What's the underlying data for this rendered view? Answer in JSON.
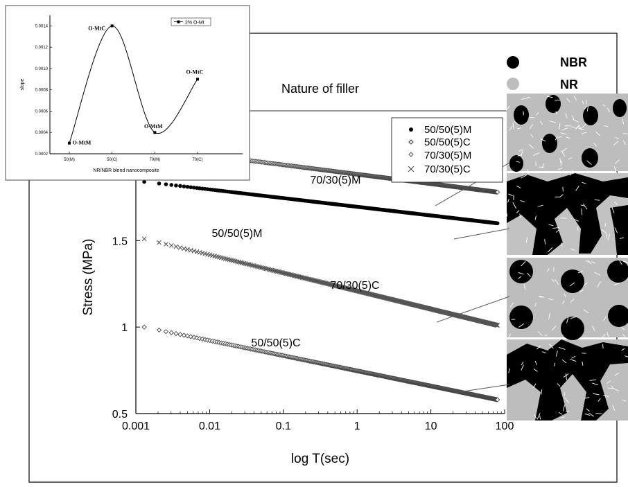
{
  "chart_data": [
    {
      "type": "scatter",
      "title": "Nature of filler",
      "xlabel": "log T(sec)",
      "ylabel": "Stress (MPa)",
      "x_scale": "log",
      "xlim": [
        0.001,
        100
      ],
      "ylim": [
        0.5,
        2.25
      ],
      "x_tick_labels": [
        "0.001",
        "0.01",
        "0.1",
        "1",
        "10",
        "100"
      ],
      "y_tick_labels": [
        "0.5",
        "1",
        "1.5",
        "2"
      ],
      "x_ticks": [
        0.001,
        0.01,
        0.1,
        1,
        10,
        100
      ],
      "y_ticks": [
        0.5,
        1,
        1.5,
        2
      ],
      "grid": false,
      "legend_position": "top-right",
      "series": [
        {
          "name": "50/50(5)M",
          "marker": "filled-circle",
          "label": "50/50(5)M",
          "x_start": 0.0013,
          "x_end": 80,
          "y_start": 1.84,
          "y_end": 1.6
        },
        {
          "name": "50/50(5)C",
          "marker": "open-diamond",
          "label": "50/50(5)C",
          "x_start": 0.0013,
          "x_end": 80,
          "y_start": 1.0,
          "y_end": 0.58
        },
        {
          "name": "70/30(5)M",
          "marker": "open-diamond",
          "label": "70/30(5)M",
          "x_start": 0.0013,
          "x_end": 80,
          "y_start": 2.04,
          "y_end": 1.78
        },
        {
          "name": "70/30(5)C",
          "marker": "cross",
          "label": "70/30(5)C",
          "x_start": 0.0013,
          "x_end": 80,
          "y_start": 1.51,
          "y_end": 1.01
        }
      ]
    },
    {
      "type": "line",
      "xlabel": "NR/NBR blend nanocomposite",
      "ylabel": "slope",
      "categories": [
        "50(M)",
        "50(C)",
        "70(M)",
        "70(C)"
      ],
      "y_tick_labels": [
        "0.0002",
        "0.0004",
        "0.0006",
        "0.0008",
        "0.0010",
        "0.0012",
        "0.0014"
      ],
      "ylim": [
        0.0002,
        0.0015
      ],
      "series": [
        {
          "name": "2% O-Mt",
          "values": [
            0.0003,
            0.0014,
            0.0004,
            0.0009
          ]
        }
      ],
      "annotations": [
        "O-MtM",
        "O-MtC",
        "O-MtM",
        "O-MtC"
      ]
    }
  ],
  "legend_morphology": [
    {
      "label": "NBR",
      "color": "#000000"
    },
    {
      "label": "NR",
      "color": "#bdbdbd"
    }
  ]
}
